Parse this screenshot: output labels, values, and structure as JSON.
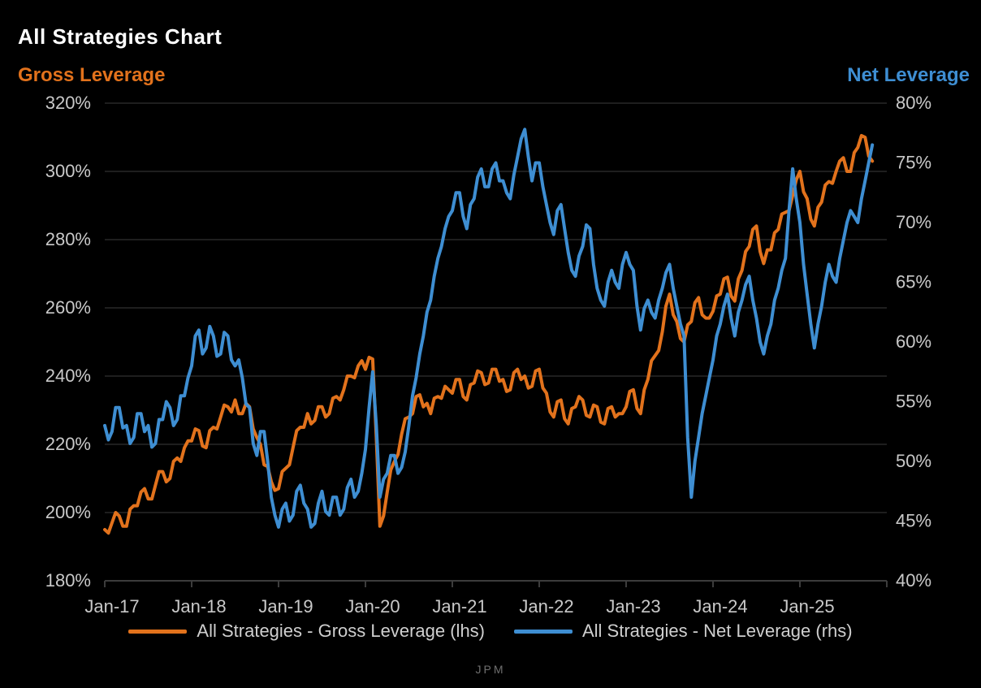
{
  "title": "All Strategies Chart",
  "left_axis_title": "Gross Leverage",
  "right_axis_title": "Net Leverage",
  "watermark": "JPM",
  "colors": {
    "background": "#000000",
    "gross_line": "#E2721C",
    "net_line": "#3E8ED2",
    "title_text": "#FFFFFF",
    "tick_label": "#C9C9C9",
    "gridline": "#1E1E1E",
    "axis_line": "#3C3C3C",
    "legend_text": "#CFCFCF",
    "watermark_text": "#6F6F6F"
  },
  "chart_data": {
    "type": "line",
    "title": "All Strategies Chart",
    "xlabel": "",
    "ylabel_left": "Gross Leverage",
    "ylabel_right": "Net Leverage",
    "grid": true,
    "legend_position": "bottom-center",
    "x_start": "Jan-17",
    "x_end": "Nov-25",
    "points_per_month": 2,
    "x_tick_labels": [
      "Jan-17",
      "Jan-18",
      "Jan-19",
      "Jan-20",
      "Jan-21",
      "Jan-22",
      "Jan-23",
      "Jan-24",
      "Jan-25"
    ],
    "left_axis": {
      "min": 180,
      "max": 320,
      "step": 20,
      "tick_labels": [
        "320%",
        "300%",
        "280%",
        "260%",
        "240%",
        "220%",
        "200%",
        "180%"
      ]
    },
    "right_axis": {
      "min": 40,
      "max": 80,
      "step": 5,
      "tick_labels": [
        "80%",
        "75%",
        "70%",
        "65%",
        "60%",
        "55%",
        "50%",
        "45%",
        "40%"
      ]
    },
    "series": [
      {
        "name": "All Strategies - Gross Leverage (lhs)",
        "axis": "left",
        "color": "#E2721C",
        "values": [
          195,
          194,
          197,
          200,
          199,
          196,
          196,
          201,
          202,
          202,
          206,
          207,
          204,
          204,
          208,
          212,
          212,
          209,
          210,
          215,
          216,
          215,
          219,
          221,
          221,
          224.5,
          224,
          219.5,
          219,
          224,
          225,
          224.5,
          228,
          231.5,
          231,
          229.5,
          233,
          229,
          229,
          232,
          231,
          224.5,
          222,
          220,
          214,
          213.5,
          209,
          206.5,
          207,
          212,
          213,
          214,
          219,
          224,
          225,
          225,
          229,
          226,
          227,
          231,
          231,
          228,
          229,
          233.5,
          234,
          233,
          236,
          240,
          240,
          239.5,
          243,
          244.5,
          242,
          245.5,
          245,
          222,
          196,
          199,
          206,
          212.5,
          215,
          217,
          223,
          227.5,
          228,
          229,
          234,
          234.5,
          231,
          232,
          229,
          233.5,
          234,
          233.5,
          237,
          236,
          235,
          239,
          239,
          234,
          233,
          237.5,
          238,
          241.5,
          241,
          237.5,
          238,
          242,
          242,
          238.5,
          239,
          235.5,
          236,
          241,
          242,
          239,
          240,
          236.5,
          237,
          241.5,
          242,
          236.5,
          235,
          229.5,
          228,
          232.5,
          233,
          227.5,
          226,
          230.5,
          231,
          234,
          233,
          228.5,
          228,
          231.5,
          231,
          226.5,
          226,
          230.5,
          231,
          228,
          229,
          229,
          231,
          235.5,
          236,
          230.5,
          229,
          236,
          239,
          244.5,
          246,
          247.5,
          253,
          260.5,
          264,
          258,
          256,
          251,
          250,
          255,
          256,
          261.5,
          263,
          258,
          257,
          257,
          259,
          263.5,
          264,
          268.5,
          269,
          263.5,
          262,
          268.5,
          271,
          276.5,
          278,
          283,
          284,
          276.5,
          273,
          277,
          277,
          282,
          283,
          287.5,
          288,
          288.5,
          293,
          297.5,
          300,
          294,
          292,
          286,
          284,
          289.5,
          291,
          296,
          297,
          296.5,
          300,
          303,
          304,
          300,
          300,
          305.5,
          307,
          310.5,
          310,
          304.5,
          303
        ]
      },
      {
        "name": "All Strategies - Net Leverage (rhs)",
        "axis": "right",
        "color": "#3E8ED2",
        "values": [
          53,
          51.8,
          52.5,
          54.5,
          54.5,
          52.8,
          53,
          51.5,
          52,
          54,
          54,
          52.5,
          53,
          51.2,
          51.5,
          53.5,
          53.5,
          55,
          54.5,
          53,
          53.5,
          55.5,
          55.5,
          57,
          58,
          60.5,
          61,
          59,
          59.5,
          61.3,
          60.5,
          58.8,
          59,
          60.8,
          60.5,
          58.5,
          58,
          58.5,
          57,
          54.8,
          54.5,
          51.5,
          50.5,
          52.5,
          52.5,
          50,
          47,
          45.5,
          44.5,
          46,
          46.5,
          45,
          45.5,
          47.5,
          48,
          46.5,
          46,
          44.5,
          44.8,
          46.5,
          47.5,
          45.8,
          45.5,
          47,
          47,
          45.5,
          46,
          47.8,
          48.5,
          47,
          47.5,
          49,
          51,
          54.5,
          57.5,
          53,
          47,
          48.5,
          49,
          50.5,
          50.5,
          49,
          49.5,
          50.8,
          53,
          55.5,
          57,
          59,
          60.5,
          62.5,
          63.5,
          65.5,
          67,
          68,
          69.5,
          70.5,
          71,
          72.5,
          72.5,
          70.5,
          69.5,
          71.5,
          72,
          73.8,
          74.5,
          73,
          73,
          74.5,
          75,
          73.5,
          73.5,
          72.5,
          72,
          74,
          75.5,
          77,
          77.8,
          75.5,
          73.5,
          75,
          75,
          73,
          71.5,
          70,
          69,
          71,
          71.5,
          69.5,
          67.5,
          66,
          65.5,
          67.2,
          68,
          69.8,
          69.5,
          66.5,
          64.5,
          63.5,
          63,
          65,
          66,
          65,
          64.5,
          66.5,
          67.5,
          66.5,
          66,
          63,
          61,
          62.8,
          63.5,
          62.5,
          62,
          63.5,
          64.5,
          65.8,
          66.5,
          64.5,
          63,
          61.5,
          60.5,
          52,
          47,
          50,
          52,
          54,
          55.5,
          57,
          58.5,
          60.5,
          61.5,
          63,
          64,
          62,
          60.5,
          62.5,
          63.5,
          64.8,
          65.5,
          63.5,
          62,
          60,
          59,
          60.5,
          61.5,
          63.5,
          64.5,
          66,
          67,
          71,
          74.5,
          72,
          70,
          66.5,
          64,
          61.5,
          59.5,
          61.5,
          63,
          65,
          66.5,
          65.5,
          65,
          67,
          68.5,
          70,
          71,
          70.5,
          70,
          72,
          73.5,
          75,
          76.5
        ]
      }
    ],
    "legend": [
      {
        "label": "All Strategies - Gross Leverage (lhs)",
        "color": "#E2721C"
      },
      {
        "label": "All Strategies - Net Leverage (rhs)",
        "color": "#3E8ED2"
      }
    ]
  }
}
